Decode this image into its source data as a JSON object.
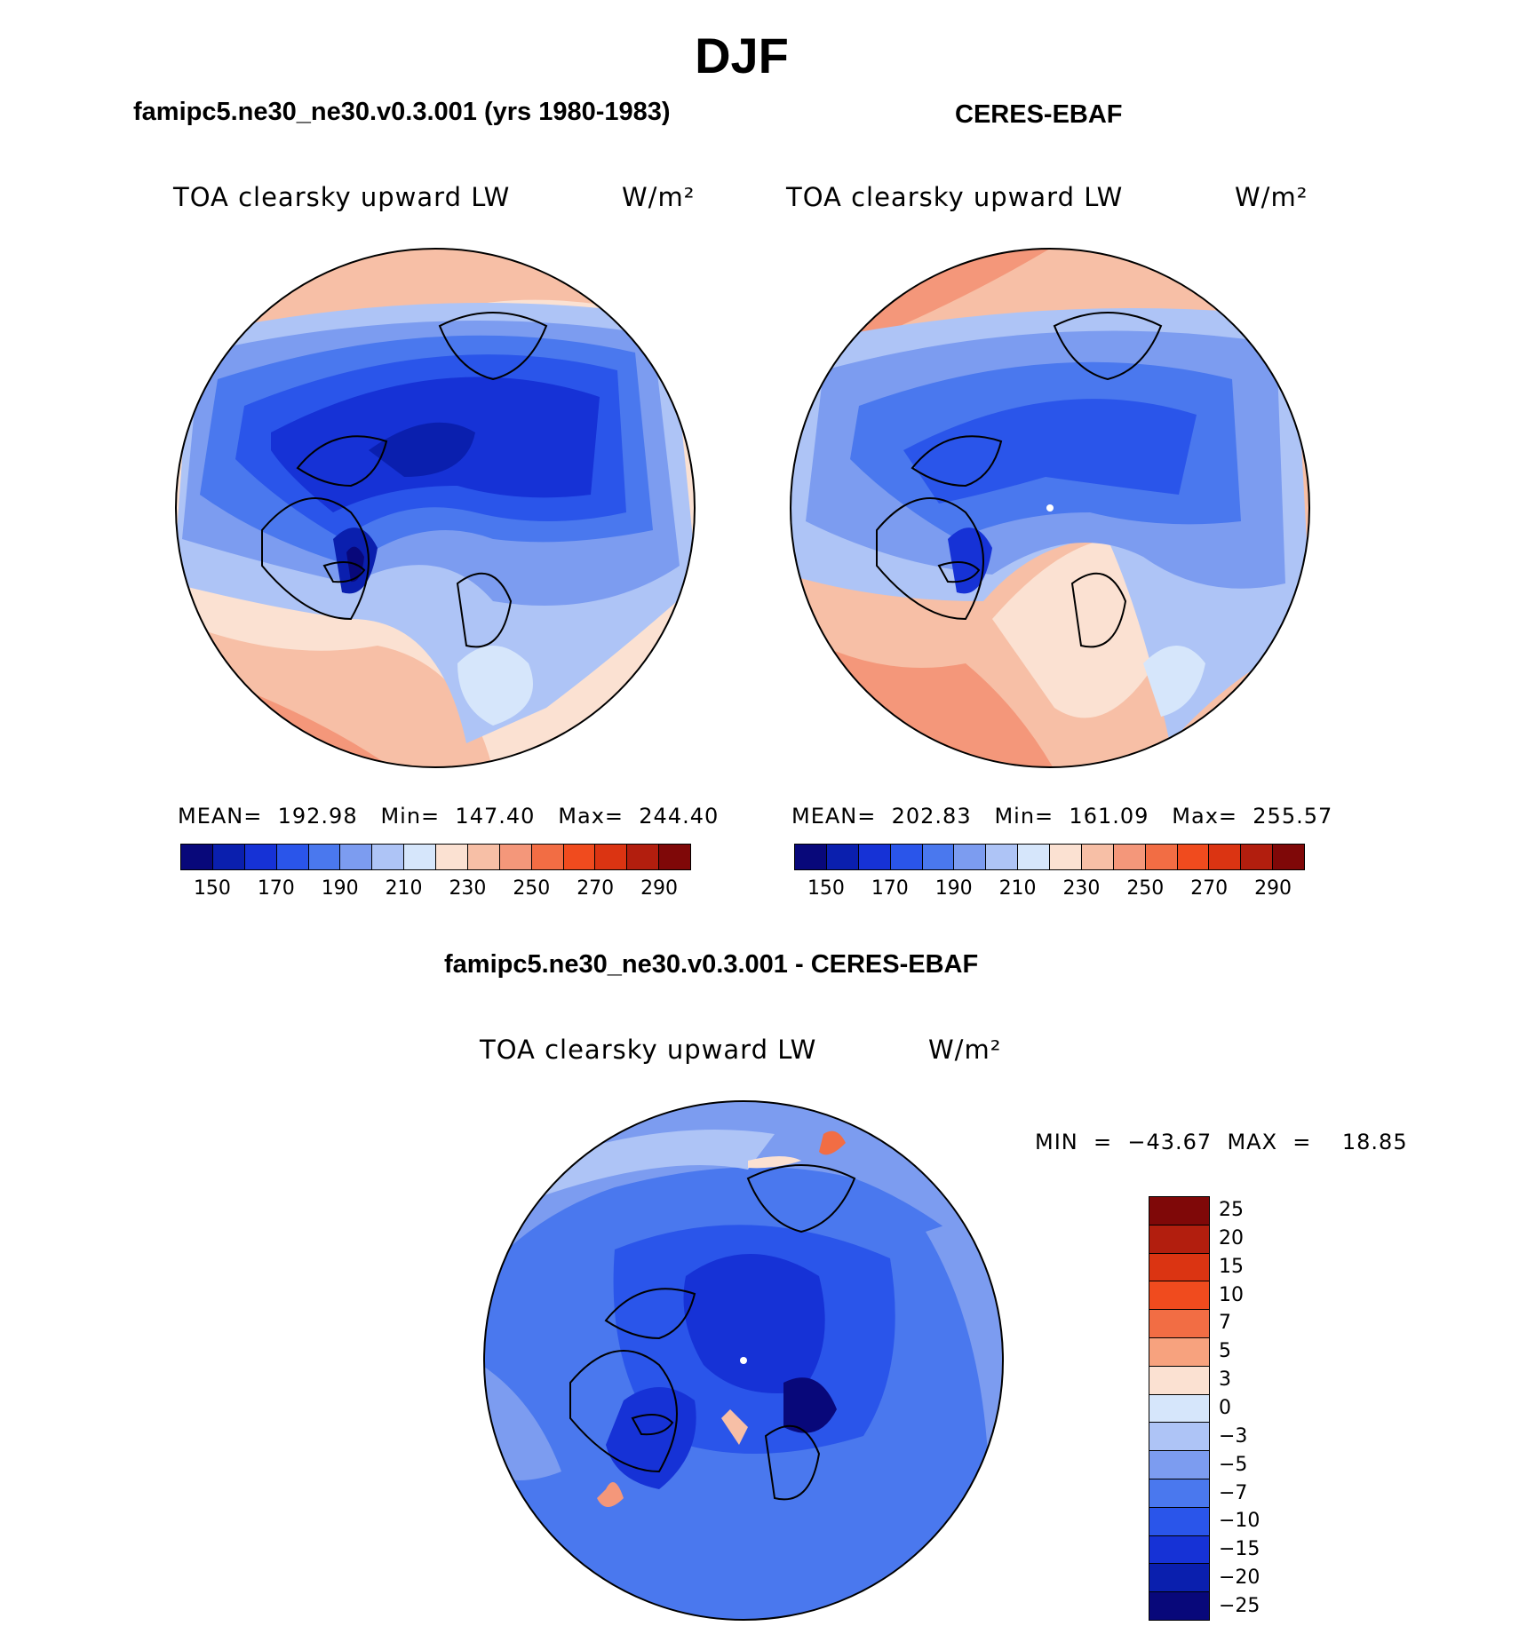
{
  "season_title": "DJF",
  "panel_left": {
    "title": "famipc5.ne30_ne30.v0.3.001 (yrs 1980-1983)",
    "variable": "TOA clearsky upward LW",
    "units": "W/m²",
    "stats": "MEAN=  192.98   Min=  147.40   Max=  244.40"
  },
  "panel_right": {
    "title": "CERES-EBAF",
    "variable": "TOA clearsky upward LW",
    "units": "W/m²",
    "stats": "MEAN=  202.83   Min=  161.09   Max=  255.57"
  },
  "panel_diff": {
    "title": "famipc5.ne30_ne30.v0.3.001 - CERES-EBAF",
    "variable": "TOA clearsky upward LW",
    "units": "W/m²",
    "stats": "MIN  =  −43.67  MAX  =    18.85"
  },
  "colorbar_main": {
    "colors": [
      "#08087a",
      "#0a1fae",
      "#1632d6",
      "#2a55ea",
      "#4a78ee",
      "#7c9cf0",
      "#aec4f6",
      "#d6e6fb",
      "#fbe1d2",
      "#f7bfa6",
      "#f4977a",
      "#f26d44",
      "#f04b1e",
      "#db3412",
      "#b21e0e",
      "#7f0808"
    ],
    "tick_labels": [
      "150",
      "170",
      "190",
      "210",
      "230",
      "250",
      "270",
      "290"
    ]
  },
  "colorbar_diff": {
    "colors": [
      "#7f0808",
      "#b21e0e",
      "#db3412",
      "#f04b1e",
      "#f26d44",
      "#f7a27e",
      "#fbe1d2",
      "#d6e6fb",
      "#aec4f6",
      "#7c9cf0",
      "#4a78ee",
      "#2a55ea",
      "#1632d6",
      "#0a1fae",
      "#08087a"
    ],
    "labels": [
      "25",
      "20",
      "15",
      "10",
      "7",
      "5",
      "3",
      "0",
      "−3",
      "−5",
      "−7",
      "−10",
      "−15",
      "−20",
      "−25"
    ]
  }
}
